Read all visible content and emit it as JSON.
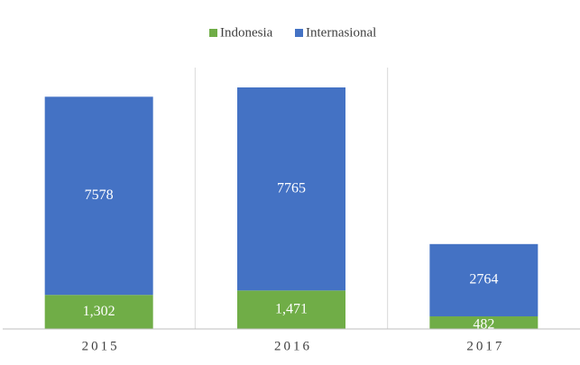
{
  "chart_data": {
    "type": "stacked_bar",
    "categories": [
      "2015",
      "2016",
      "2017"
    ],
    "series": [
      {
        "name": "Indonesia",
        "color": "#70ad47",
        "values": [
          1302,
          1471,
          482
        ],
        "value_labels": [
          "1,302",
          "1,471",
          "482"
        ]
      },
      {
        "name": "Internasional",
        "color": "#4472c4",
        "values": [
          7578,
          7765,
          2764
        ]
      }
    ]
  }
}
